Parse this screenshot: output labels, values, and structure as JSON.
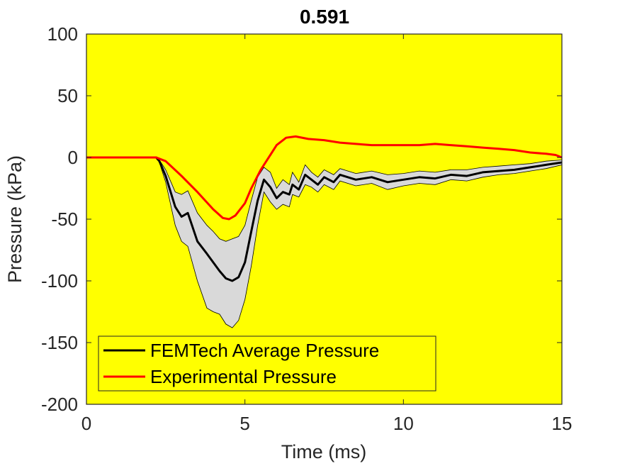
{
  "chart_data": {
    "type": "line",
    "title": "0.591",
    "xlabel": "Time (ms)",
    "ylabel": "Pressure (kPa)",
    "xlim": [
      0,
      15
    ],
    "ylim": [
      -200,
      100
    ],
    "xticks": [
      0,
      5,
      10,
      15
    ],
    "yticks": [
      100,
      50,
      0,
      -50,
      -100,
      -150,
      -200
    ],
    "grid": false,
    "legend_position": "bottom-left",
    "plot_background": "#ffff00",
    "band_color": "#d9d9d9",
    "series": [
      {
        "name": "FEMTech Average Pressure",
        "color": "#000000",
        "x": [
          0,
          2.2,
          2.3,
          2.5,
          2.8,
          3.0,
          3.2,
          3.5,
          3.8,
          4.0,
          4.2,
          4.4,
          4.6,
          4.8,
          5.0,
          5.2,
          5.4,
          5.6,
          5.8,
          6.0,
          6.2,
          6.4,
          6.5,
          6.7,
          6.9,
          7.1,
          7.3,
          7.5,
          7.8,
          8.0,
          8.5,
          9.0,
          9.5,
          10.0,
          10.5,
          11.0,
          11.5,
          12.0,
          12.5,
          13.0,
          13.5,
          14.0,
          14.5,
          15.0
        ],
        "y": [
          0,
          0,
          -3,
          -15,
          -40,
          -48,
          -45,
          -68,
          -78,
          -85,
          -92,
          -98,
          -100,
          -97,
          -85,
          -60,
          -35,
          -18,
          -24,
          -33,
          -28,
          -30,
          -22,
          -26,
          -14,
          -18,
          -22,
          -16,
          -20,
          -14,
          -18,
          -16,
          -20,
          -18,
          -16,
          -17,
          -14,
          -15,
          -12,
          -11,
          -10,
          -8,
          -6,
          -4
        ]
      },
      {
        "name": "Experimental Pressure",
        "color": "#ff0000",
        "x": [
          0,
          2.2,
          2.5,
          3.0,
          3.5,
          4.0,
          4.3,
          4.5,
          4.7,
          5.0,
          5.2,
          5.5,
          5.8,
          6.0,
          6.3,
          6.6,
          7.0,
          7.5,
          8.0,
          8.5,
          9.0,
          9.5,
          10.0,
          10.5,
          11.0,
          11.5,
          12.0,
          12.5,
          13.0,
          13.5,
          14.0,
          14.5,
          14.8,
          15.0
        ],
        "y": [
          0,
          0,
          -3,
          -15,
          -28,
          -42,
          -49,
          -50,
          -47,
          -37,
          -25,
          -10,
          2,
          10,
          16,
          17,
          15,
          14,
          12,
          11,
          10,
          10,
          10,
          10,
          11,
          10,
          9,
          8,
          7,
          6,
          4,
          3,
          2,
          0
        ]
      }
    ],
    "band": {
      "x": [
        0,
        2.2,
        2.3,
        2.5,
        2.8,
        3.0,
        3.2,
        3.5,
        3.8,
        4.0,
        4.2,
        4.4,
        4.6,
        4.8,
        5.0,
        5.2,
        5.4,
        5.6,
        5.8,
        6.0,
        6.2,
        6.4,
        6.5,
        6.7,
        6.9,
        7.1,
        7.3,
        7.5,
        7.8,
        8.0,
        8.5,
        9.0,
        9.5,
        10.0,
        10.5,
        11.0,
        11.5,
        12.0,
        12.5,
        13.0,
        13.5,
        14.0,
        14.5,
        15.0
      ],
      "upper": [
        0,
        0,
        -2,
        -10,
        -28,
        -30,
        -27,
        -45,
        -55,
        -60,
        -66,
        -68,
        -66,
        -64,
        -55,
        -35,
        -16,
        -8,
        -12,
        -25,
        -18,
        -22,
        -12,
        -20,
        -6,
        -12,
        -16,
        -10,
        -14,
        -9,
        -13,
        -11,
        -14,
        -13,
        -11,
        -12,
        -10,
        -10,
        -8,
        -7,
        -6,
        -5,
        -3,
        -2
      ],
      "lower": [
        0,
        0,
        -4,
        -20,
        -55,
        -68,
        -72,
        -100,
        -122,
        -125,
        -127,
        -135,
        -138,
        -132,
        -115,
        -88,
        -55,
        -28,
        -36,
        -42,
        -38,
        -40,
        -30,
        -32,
        -22,
        -24,
        -28,
        -22,
        -26,
        -19,
        -23,
        -21,
        -26,
        -23,
        -21,
        -22,
        -18,
        -19,
        -16,
        -14,
        -13,
        -11,
        -9,
        -6
      ]
    }
  }
}
